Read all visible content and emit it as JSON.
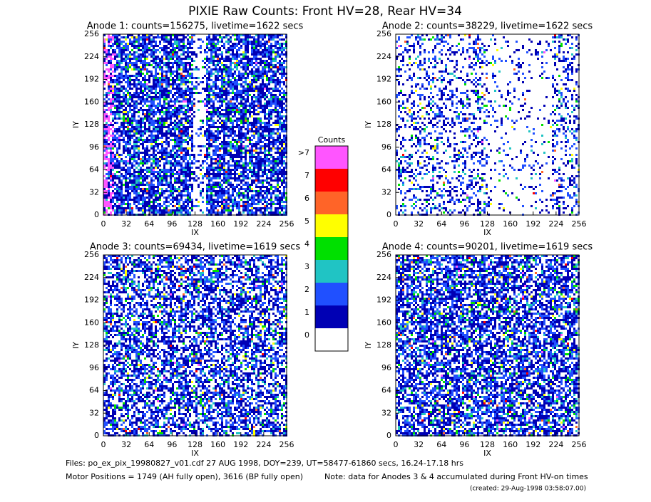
{
  "title": "PIXIE Raw Counts:  Front HV=28, Rear HV=34",
  "chart_data": [
    {
      "type": "heatmap",
      "title": "Anode 1: counts=156275, livetime=1622 secs",
      "x_label": "IX",
      "y_label": "IY",
      "xlim": [
        0,
        256
      ],
      "ylim": [
        0,
        256
      ],
      "xticks": [
        0,
        32,
        64,
        96,
        128,
        160,
        192,
        224,
        256
      ],
      "yticks": [
        0,
        32,
        64,
        96,
        128,
        160,
        192,
        224,
        256
      ]
    },
    {
      "type": "heatmap",
      "title": "Anode 2: counts=38229, livetime=1622 secs",
      "x_label": "IX",
      "y_label": "IY",
      "xlim": [
        0,
        256
      ],
      "ylim": [
        0,
        256
      ],
      "xticks": [
        0,
        32,
        64,
        96,
        128,
        160,
        192,
        224,
        256
      ],
      "yticks": [
        0,
        32,
        64,
        96,
        128,
        160,
        192,
        224,
        256
      ]
    },
    {
      "type": "heatmap",
      "title": "Anode 3: counts=69434, livetime=1619 secs",
      "x_label": "IX",
      "y_label": "IY",
      "xlim": [
        0,
        256
      ],
      "ylim": [
        0,
        256
      ],
      "xticks": [
        0,
        32,
        64,
        96,
        128,
        160,
        192,
        224,
        256
      ],
      "yticks": [
        0,
        32,
        64,
        96,
        128,
        160,
        192,
        224,
        256
      ]
    },
    {
      "type": "heatmap",
      "title": "Anode 4: counts=90201, livetime=1619 secs",
      "x_label": "IX",
      "y_label": "IY",
      "xlim": [
        0,
        256
      ],
      "ylim": [
        0,
        256
      ],
      "xticks": [
        0,
        32,
        64,
        96,
        128,
        160,
        192,
        224,
        256
      ],
      "yticks": [
        0,
        32,
        64,
        96,
        128,
        160,
        192,
        224,
        256
      ]
    }
  ],
  "colorbar": {
    "title": "Counts",
    "levels": [
      {
        "label": "0",
        "color": "#ffffff"
      },
      {
        "label": "1",
        "color": "#0000b4"
      },
      {
        "label": "2",
        "color": "#2050ff"
      },
      {
        "label": "3",
        "color": "#20c4c4"
      },
      {
        "label": "4",
        "color": "#00e000"
      },
      {
        "label": "5",
        "color": "#ffff00"
      },
      {
        "label": "6",
        "color": "#ff6428"
      },
      {
        "label": "7",
        "color": "#ff0000"
      },
      {
        "label": ">7",
        "color": "#ff55ff"
      }
    ]
  },
  "footer": {
    "files": "Files: po_ex_pix_19980827_v01.cdf    27 AUG 1998, DOY=239, UT=58477-61860 secs, 16.24-17.18 hrs",
    "motor": "Motor Positions = 1749 (AH fully open), 3616 (BP fully open)",
    "note": "Note: data for Anodes 3 & 4 accumulated during Front HV-on times",
    "created": "(created: 29-Aug-1998 03:58:07.00)"
  }
}
